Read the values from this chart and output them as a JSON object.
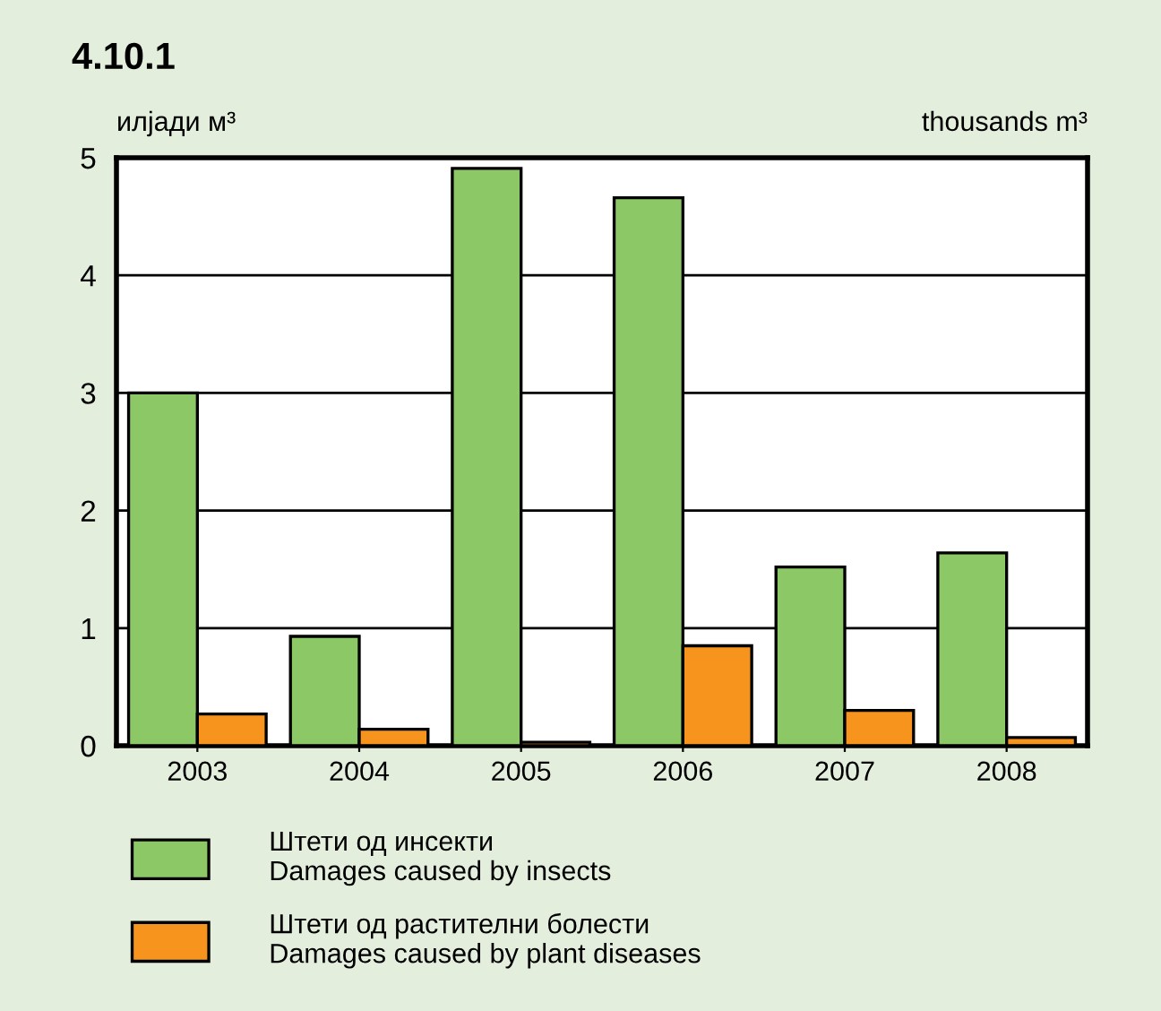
{
  "chart_data": {
    "type": "bar",
    "title": "4.10.1",
    "ylabel": "илјади м³",
    "annotations": [
      "thousands m³"
    ],
    "categories": [
      "2003",
      "2004",
      "2005",
      "2006",
      "2007",
      "2008"
    ],
    "series": [
      {
        "name": "Штети од инсекти\nDamages caused by insects",
        "color": "#8cc866",
        "values": [
          3.0,
          0.93,
          4.91,
          4.66,
          1.52,
          1.64
        ]
      },
      {
        "name": "Штети од растителни болести\nDamages caused by plant diseases",
        "color": "#f7941d",
        "values": [
          0.27,
          0.14,
          0.03,
          0.85,
          0.3,
          0.07
        ]
      }
    ],
    "ylim": [
      0,
      5
    ],
    "yticks": [
      0,
      1,
      2,
      3,
      4,
      5
    ],
    "grid": "y",
    "legend": "bottom"
  }
}
